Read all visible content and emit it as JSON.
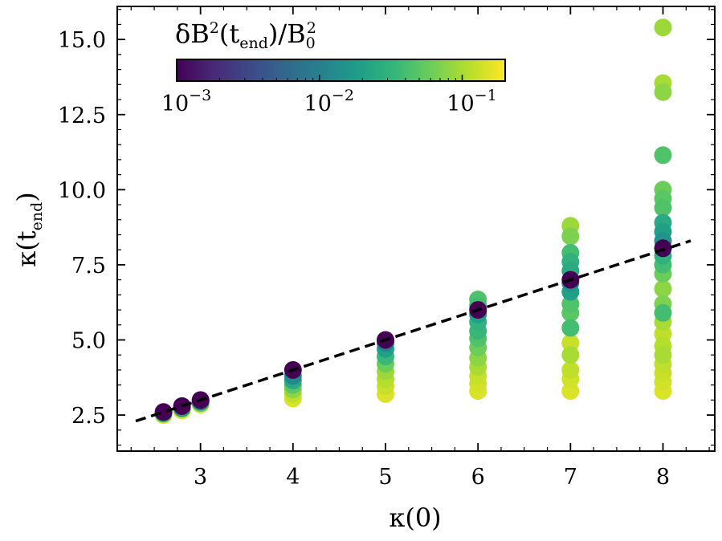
{
  "chart_data": {
    "type": "scatter",
    "title": "",
    "xlabel": "κ(0)",
    "ylabel": "κ(t_end)",
    "ylabel_parts": {
      "main": "κ(t",
      "sub": "end",
      "close": ")"
    },
    "xlim": [
      2.1,
      8.56
    ],
    "ylim": [
      1.3,
      16.1
    ],
    "x_ticks": [
      3,
      4,
      5,
      6,
      7,
      8
    ],
    "x_tick_labels": [
      "3",
      "4",
      "5",
      "6",
      "7",
      "8"
    ],
    "y_ticks": [
      2.5,
      5.0,
      7.5,
      10.0,
      12.5,
      15.0
    ],
    "y_tick_labels": [
      "2.5",
      "5.0",
      "7.5",
      "10.0",
      "12.5",
      "15.0"
    ],
    "grid": false,
    "reference_line": {
      "style": "dashed",
      "color": "#000000",
      "x": [
        2.3,
        8.3
      ],
      "y": [
        2.3,
        8.3
      ]
    },
    "colorbar": {
      "label": "δB²(t_end)/B₀²",
      "label_parts": {
        "pre": "δB",
        "sup": "2",
        "mid": "(t",
        "sub": "end",
        "post": ")/B",
        "sub2": "0",
        "sup2": "2"
      },
      "scale": "log",
      "range": [
        0.001,
        0.2
      ],
      "ticks": [
        0.001,
        0.01,
        0.1
      ],
      "tick_labels": [
        {
          "base": "10",
          "exp": "−3"
        },
        {
          "base": "10",
          "exp": "−2"
        },
        {
          "base": "10",
          "exp": "−1"
        }
      ],
      "colormap": "viridis",
      "colormap_stops": [
        "#440154",
        "#482878",
        "#3e4989",
        "#31688e",
        "#26828e",
        "#1f9e89",
        "#35b779",
        "#6ece58",
        "#b5de2b",
        "#fde725"
      ],
      "placement": "top-left"
    },
    "series": [
      {
        "x": 2.6,
        "points": [
          {
            "y": 2.5,
            "c": 0.15
          },
          {
            "y": 2.55,
            "c": 0.03
          },
          {
            "y": 2.6,
            "c": 0.001
          }
        ]
      },
      {
        "x": 2.8,
        "points": [
          {
            "y": 2.65,
            "c": 0.15
          },
          {
            "y": 2.72,
            "c": 0.02
          },
          {
            "y": 2.8,
            "c": 0.001
          }
        ]
      },
      {
        "x": 3.0,
        "points": [
          {
            "y": 2.85,
            "c": 0.15
          },
          {
            "y": 2.9,
            "c": 0.05
          },
          {
            "y": 2.95,
            "c": 0.01
          },
          {
            "y": 3.0,
            "c": 0.001
          }
        ]
      },
      {
        "x": 4.0,
        "points": [
          {
            "y": 3.05,
            "c": 0.15
          },
          {
            "y": 3.2,
            "c": 0.12
          },
          {
            "y": 3.35,
            "c": 0.08
          },
          {
            "y": 3.5,
            "c": 0.05
          },
          {
            "y": 3.65,
            "c": 0.025
          },
          {
            "y": 3.8,
            "c": 0.012
          },
          {
            "y": 4.0,
            "c": 0.001
          }
        ]
      },
      {
        "x": 5.0,
        "points": [
          {
            "y": 3.2,
            "c": 0.15
          },
          {
            "y": 3.45,
            "c": 0.13
          },
          {
            "y": 3.7,
            "c": 0.11
          },
          {
            "y": 3.95,
            "c": 0.09
          },
          {
            "y": 4.2,
            "c": 0.06
          },
          {
            "y": 4.45,
            "c": 0.035
          },
          {
            "y": 4.7,
            "c": 0.02
          },
          {
            "y": 4.9,
            "c": 0.01
          },
          {
            "y": 5.0,
            "c": 0.001
          }
        ]
      },
      {
        "x": 6.0,
        "points": [
          {
            "y": 3.3,
            "c": 0.15
          },
          {
            "y": 3.55,
            "c": 0.14
          },
          {
            "y": 3.8,
            "c": 0.13
          },
          {
            "y": 4.1,
            "c": 0.1
          },
          {
            "y": 4.4,
            "c": 0.08
          },
          {
            "y": 4.75,
            "c": 0.06
          },
          {
            "y": 5.05,
            "c": 0.045
          },
          {
            "y": 5.3,
            "c": 0.035
          },
          {
            "y": 5.6,
            "c": 0.03
          },
          {
            "y": 5.85,
            "c": 0.02
          },
          {
            "y": 6.15,
            "c": 0.04
          },
          {
            "y": 6.35,
            "c": 0.045
          },
          {
            "y": 6.0,
            "c": 0.001
          }
        ]
      },
      {
        "x": 7.0,
        "points": [
          {
            "y": 3.3,
            "c": 0.15
          },
          {
            "y": 3.7,
            "c": 0.14
          },
          {
            "y": 4.0,
            "c": 0.12
          },
          {
            "y": 4.5,
            "c": 0.1
          },
          {
            "y": 4.9,
            "c": 0.13
          },
          {
            "y": 5.4,
            "c": 0.04
          },
          {
            "y": 5.9,
            "c": 0.05
          },
          {
            "y": 6.2,
            "c": 0.045
          },
          {
            "y": 6.6,
            "c": 0.02
          },
          {
            "y": 6.9,
            "c": 0.015
          },
          {
            "y": 7.3,
            "c": 0.025
          },
          {
            "y": 7.6,
            "c": 0.03
          },
          {
            "y": 7.9,
            "c": 0.04
          },
          {
            "y": 8.45,
            "c": 0.07
          },
          {
            "y": 8.8,
            "c": 0.09
          },
          {
            "y": 7.0,
            "c": 0.001
          }
        ]
      },
      {
        "x": 8.0,
        "points": [
          {
            "y": 3.3,
            "c": 0.15
          },
          {
            "y": 3.6,
            "c": 0.14
          },
          {
            "y": 3.9,
            "c": 0.13
          },
          {
            "y": 4.2,
            "c": 0.12
          },
          {
            "y": 4.5,
            "c": 0.1
          },
          {
            "y": 4.8,
            "c": 0.11
          },
          {
            "y": 5.2,
            "c": 0.12
          },
          {
            "y": 5.6,
            "c": 0.1
          },
          {
            "y": 5.9,
            "c": 0.04
          },
          {
            "y": 6.2,
            "c": 0.07
          },
          {
            "y": 6.7,
            "c": 0.08
          },
          {
            "y": 7.2,
            "c": 0.06
          },
          {
            "y": 7.5,
            "c": 0.04
          },
          {
            "y": 7.8,
            "c": 0.03
          },
          {
            "y": 8.3,
            "c": 0.015
          },
          {
            "y": 8.6,
            "c": 0.02
          },
          {
            "y": 8.9,
            "c": 0.025
          },
          {
            "y": 9.4,
            "c": 0.045
          },
          {
            "y": 9.7,
            "c": 0.05
          },
          {
            "y": 10.0,
            "c": 0.06
          },
          {
            "y": 11.15,
            "c": 0.045
          },
          {
            "y": 13.25,
            "c": 0.08
          },
          {
            "y": 13.55,
            "c": 0.1
          },
          {
            "y": 15.4,
            "c": 0.09
          },
          {
            "y": 8.05,
            "c": 0.001
          }
        ]
      }
    ]
  }
}
